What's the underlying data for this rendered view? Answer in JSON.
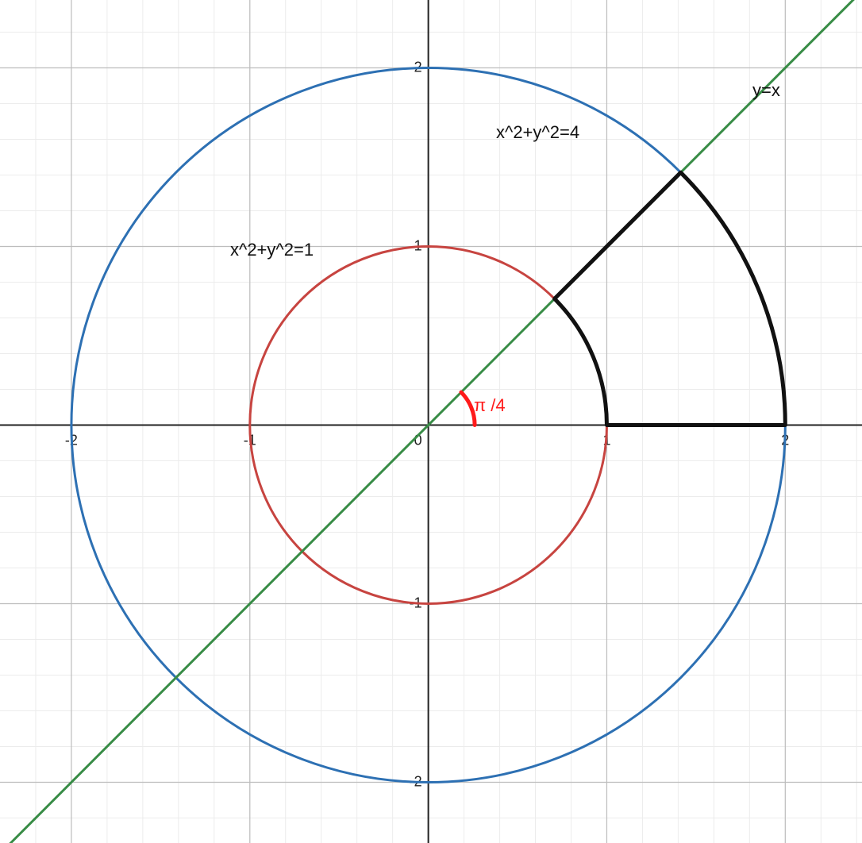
{
  "chart_data": {
    "type": "graph",
    "xlim": [
      -2.4,
      2.43
    ],
    "ylim": [
      -2.34,
      2.38
    ],
    "xticks": [
      -2,
      -1,
      0,
      1,
      2
    ],
    "yticks": [
      -2,
      -1,
      0,
      1,
      2
    ],
    "grid": true,
    "curves": [
      {
        "kind": "circle",
        "radius": 2,
        "color": "#2d70b3",
        "label": "x^2+y^2=4"
      },
      {
        "kind": "circle",
        "radius": 1,
        "color": "#c74440",
        "label": "x^2+y^2=1"
      },
      {
        "kind": "line",
        "slope": 1,
        "color": "#388c46",
        "label": "y=x"
      }
    ],
    "region": {
      "r": [
        1,
        2
      ],
      "theta": [
        0,
        0.7854
      ],
      "color": "#111111"
    },
    "angle": {
      "value": 0.7854,
      "label": "π /4",
      "color": "#ff1a1a"
    }
  }
}
